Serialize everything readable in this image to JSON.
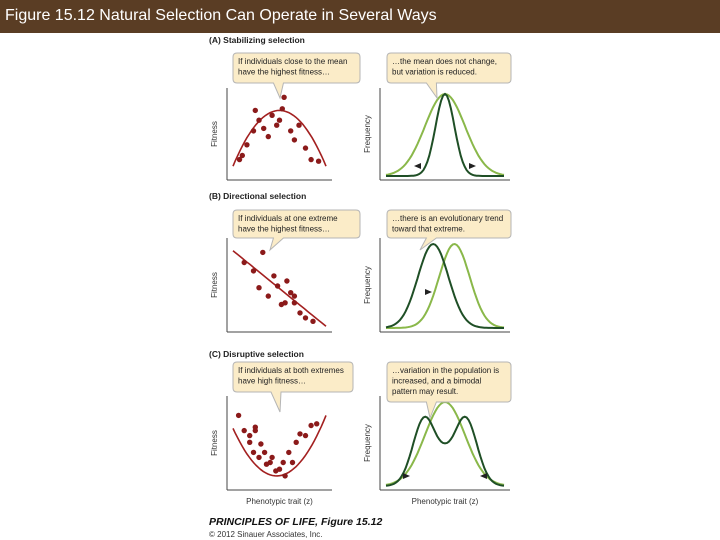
{
  "slide_title": "Figure 15.12  Natural Selection Can Operate in Several Ways",
  "colors": {
    "title_bar": "#5a3d24",
    "fitness_dot": "#8b1a1a",
    "fitness_curve": "#a32020",
    "before_curve": "#8ab84a",
    "after_curve": "#1f4f26",
    "callout_fill": "#fbecc8",
    "callout_stroke": "#b5b5b5"
  },
  "axes": {
    "fitness": "Fitness",
    "frequency": "Frequency",
    "phenotypic_trait": "Phenotypic trait (z)"
  },
  "panels": [
    {
      "id": "A",
      "heading": "(A)  Stabilizing selection",
      "fitness_callout": [
        "If individuals close to the mean",
        "have the highest fitness…"
      ],
      "frequency_callout": [
        "…the mean does not change,",
        "but variation is reduced."
      ],
      "fitness_points": [
        [
          0.07,
          0.2
        ],
        [
          0.15,
          0.38
        ],
        [
          0.1,
          0.25
        ],
        [
          0.22,
          0.55
        ],
        [
          0.28,
          0.68
        ],
        [
          0.24,
          0.8
        ],
        [
          0.38,
          0.48
        ],
        [
          0.42,
          0.74
        ],
        [
          0.47,
          0.62
        ],
        [
          0.53,
          0.82
        ],
        [
          0.55,
          0.96
        ],
        [
          0.62,
          0.55
        ],
        [
          0.66,
          0.44
        ],
        [
          0.71,
          0.62
        ],
        [
          0.78,
          0.34
        ],
        [
          0.84,
          0.2
        ],
        [
          0.92,
          0.18
        ],
        [
          0.33,
          0.58
        ],
        [
          0.5,
          0.68
        ]
      ],
      "fitness_curve": "hump",
      "distribution_before": "wide-normal",
      "distribution_after": "narrow-normal"
    },
    {
      "id": "B",
      "heading": "(B)  Directional selection",
      "fitness_callout": [
        "If individuals at one extreme",
        "have the highest fitness…"
      ],
      "frequency_callout": [
        "…there is an evolutionary trend",
        "toward that extreme."
      ],
      "fitness_points": [
        [
          0.12,
          0.78
        ],
        [
          0.22,
          0.68
        ],
        [
          0.28,
          0.48
        ],
        [
          0.32,
          0.9
        ],
        [
          0.38,
          0.38
        ],
        [
          0.44,
          0.62
        ],
        [
          0.48,
          0.5
        ],
        [
          0.52,
          0.28
        ],
        [
          0.58,
          0.56
        ],
        [
          0.62,
          0.42
        ],
        [
          0.66,
          0.38
        ],
        [
          0.72,
          0.18
        ],
        [
          0.78,
          0.12
        ],
        [
          0.56,
          0.3
        ],
        [
          0.66,
          0.3
        ],
        [
          0.86,
          0.08
        ]
      ],
      "fitness_curve": "descending-line",
      "distribution_before": "normal-right",
      "distribution_after": "normal-left"
    },
    {
      "id": "C",
      "heading": "(C)  Disruptive selection",
      "fitness_callout": [
        "If individuals at both extremes",
        "have high fitness…"
      ],
      "frequency_callout": [
        "…variation in the population is",
        "increased, and a bimodal",
        "pattern may result."
      ],
      "fitness_points": [
        [
          0.06,
          0.84
        ],
        [
          0.12,
          0.66
        ],
        [
          0.18,
          0.6
        ],
        [
          0.18,
          0.52
        ],
        [
          0.24,
          0.7
        ],
        [
          0.28,
          0.34
        ],
        [
          0.3,
          0.5
        ],
        [
          0.34,
          0.4
        ],
        [
          0.36,
          0.26
        ],
        [
          0.42,
          0.34
        ],
        [
          0.46,
          0.18
        ],
        [
          0.5,
          0.2
        ],
        [
          0.54,
          0.28
        ],
        [
          0.6,
          0.4
        ],
        [
          0.64,
          0.28
        ],
        [
          0.68,
          0.52
        ],
        [
          0.72,
          0.62
        ],
        [
          0.78,
          0.6
        ],
        [
          0.84,
          0.72
        ],
        [
          0.9,
          0.74
        ],
        [
          0.22,
          0.4
        ],
        [
          0.56,
          0.12
        ],
        [
          0.24,
          0.66
        ],
        [
          0.4,
          0.28
        ]
      ],
      "fitness_curve": "u-shape",
      "distribution_before": "wide-normal",
      "distribution_after": "bimodal"
    }
  ],
  "footer": {
    "credit_title": "PRINCIPLES OF LIFE, Figure 15.12",
    "copyright": "© 2012 Sinauer Associates, Inc."
  }
}
